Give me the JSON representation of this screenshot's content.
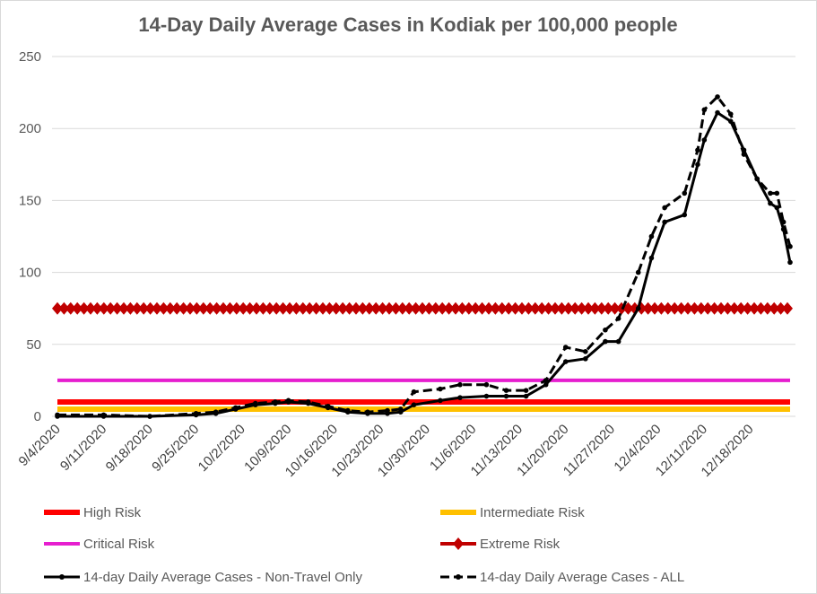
{
  "chart_data": {
    "type": "line",
    "title": "14-Day Daily Average Cases in Kodiak per 100,000 people",
    "xlabel": "",
    "ylabel": "",
    "ylim": [
      0,
      250
    ],
    "yticks": [
      "0",
      "50",
      "100",
      "150",
      "200",
      "250"
    ],
    "x_start": "9/4/2020",
    "x_end": "12/24/2020",
    "xtick_labels": [
      "9/4/2020",
      "9/11/2020",
      "9/18/2020",
      "9/25/2020",
      "10/2/2020",
      "10/9/2020",
      "10/16/2020",
      "10/23/2020",
      "10/30/2020",
      "11/6/2020",
      "11/13/2020",
      "11/20/2020",
      "11/27/2020",
      "12/4/2020",
      "12/11/2020",
      "12/18/2020"
    ],
    "grid": true,
    "legend_position": "bottom",
    "series": [
      {
        "name": "High Risk",
        "color": "#ff0000",
        "style": "thick",
        "values_constant": 10
      },
      {
        "name": "Intermediate Risk",
        "color": "#ffc000",
        "style": "thick",
        "values_constant": 5
      },
      {
        "name": "Critical Risk",
        "color": "#e61ecf",
        "style": "line",
        "values_constant": 25
      },
      {
        "name": "Extreme Risk",
        "color": "#c00000",
        "style": "diamond",
        "values_constant": 75
      },
      {
        "name": "14-day Daily Average Cases - Non-Travel Only",
        "color": "#000000",
        "style": "solid-dot",
        "x": [
          "9/4/2020",
          "9/11/2020",
          "9/18/2020",
          "9/25/2020",
          "9/28/2020",
          "10/1/2020",
          "10/4/2020",
          "10/7/2020",
          "10/9/2020",
          "10/12/2020",
          "10/15/2020",
          "10/18/2020",
          "10/21/2020",
          "10/24/2020",
          "10/26/2020",
          "10/28/2020",
          "11/1/2020",
          "11/4/2020",
          "11/8/2020",
          "11/11/2020",
          "11/14/2020",
          "11/17/2020",
          "11/20/2020",
          "11/23/2020",
          "11/26/2020",
          "11/28/2020",
          "12/1/2020",
          "12/3/2020",
          "12/5/2020",
          "12/8/2020",
          "12/10/2020",
          "12/11/2020",
          "12/13/2020",
          "12/15/2020",
          "12/17/2020",
          "12/19/2020",
          "12/21/2020",
          "12/22/2020",
          "12/23/2020",
          "12/24/2020"
        ],
        "y": [
          0,
          0,
          0,
          1,
          2,
          5,
          8,
          9,
          10,
          9,
          6,
          3,
          2,
          2,
          3,
          8,
          11,
          13,
          14,
          14,
          14,
          22,
          38,
          40,
          52,
          52,
          75,
          110,
          135,
          140,
          175,
          192,
          211,
          205,
          185,
          165,
          148,
          145,
          130,
          107
        ]
      },
      {
        "name": "14-day Daily Average Cases - ALL",
        "color": "#000000",
        "style": "dashed-dot",
        "x": [
          "9/4/2020",
          "9/11/2020",
          "9/18/2020",
          "9/25/2020",
          "9/28/2020",
          "10/1/2020",
          "10/4/2020",
          "10/7/2020",
          "10/9/2020",
          "10/12/2020",
          "10/15/2020",
          "10/18/2020",
          "10/21/2020",
          "10/24/2020",
          "10/26/2020",
          "10/28/2020",
          "11/1/2020",
          "11/4/2020",
          "11/8/2020",
          "11/11/2020",
          "11/14/2020",
          "11/17/2020",
          "11/20/2020",
          "11/23/2020",
          "11/26/2020",
          "11/28/2020",
          "12/1/2020",
          "12/3/2020",
          "12/5/2020",
          "12/8/2020",
          "12/10/2020",
          "12/11/2020",
          "12/13/2020",
          "12/15/2020",
          "12/17/2020",
          "12/19/2020",
          "12/21/2020",
          "12/22/2020",
          "12/23/2020",
          "12/24/2020"
        ],
        "y": [
          1,
          1,
          0,
          2,
          3,
          6,
          9,
          10,
          11,
          10,
          7,
          4,
          3,
          4,
          5,
          17,
          19,
          22,
          22,
          18,
          18,
          25,
          48,
          45,
          60,
          68,
          100,
          125,
          145,
          155,
          185,
          213,
          222,
          210,
          182,
          165,
          155,
          155,
          135,
          118
        ]
      }
    ]
  }
}
